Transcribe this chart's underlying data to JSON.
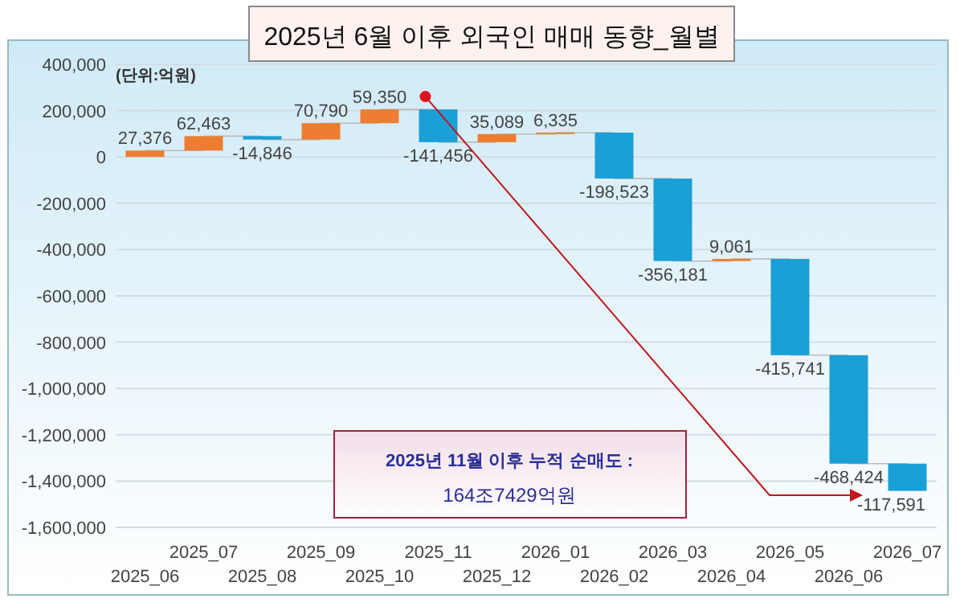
{
  "chart_data": {
    "type": "bar",
    "title": "2025년 6월 이후 외국인 매매 동향_월별",
    "categories": [
      "2025_06",
      "2025_07",
      "2025_08",
      "2025_09",
      "2025_10",
      "2025_11",
      "2025_12",
      "2026_01",
      "2026_02",
      "2026_03",
      "2026_04",
      "2026_05",
      "2026_06",
      "2026_07"
    ],
    "values": [
      27376,
      62463,
      -14846,
      70790,
      59350,
      -141456,
      35089,
      6335,
      -198523,
      -356181,
      9061,
      -415741,
      -468424,
      -117591
    ],
    "base": [
      0,
      27376,
      89839,
      74993,
      145783,
      205133,
      63677,
      98766,
      105101,
      -93422,
      -449603,
      -440542,
      -856283,
      -1324707
    ],
    "colors": [
      "#ed7d31",
      "#ed7d31",
      "#1a9fd6",
      "#ed7d31",
      "#ed7d31",
      "#1a9fd6",
      "#ed7d31",
      "#ed7d31",
      "#1a9fd6",
      "#1a9fd6",
      "#ed7d31",
      "#1a9fd6",
      "#1a9fd6",
      "#1a9fd6"
    ],
    "value_labels": [
      "27,376",
      "62,463",
      "-14,846",
      "70,790",
      "59,350",
      "-141,456",
      "35,089",
      "6,335",
      "-198,523",
      "-356,181",
      "9,061",
      "-415,741",
      "-468,424",
      "-117,591"
    ],
    "ylim": [
      -1600000,
      400000
    ],
    "yticks": [
      {
        "value": -1600000,
        "label": "-1,600,000"
      },
      {
        "value": -1400000,
        "label": "-1,400,000"
      },
      {
        "value": -1200000,
        "label": "-1,200,000"
      },
      {
        "value": -1000000,
        "label": "-1,000,000"
      },
      {
        "value": -800000,
        "label": "-800,000"
      },
      {
        "value": -600000,
        "label": "-600,000"
      },
      {
        "value": -400000,
        "label": "-400,000"
      },
      {
        "value": -200000,
        "label": "-200,000"
      },
      {
        "value": 0,
        "label": "0"
      },
      {
        "value": 200000,
        "label": "200,000"
      },
      {
        "value": 400000,
        "label": "400,000"
      }
    ],
    "grid": "y",
    "annotations": [
      "(단위:억원)",
      "2025년 11월 이후 누적 순매도 :",
      "164조7429억원"
    ]
  }
}
